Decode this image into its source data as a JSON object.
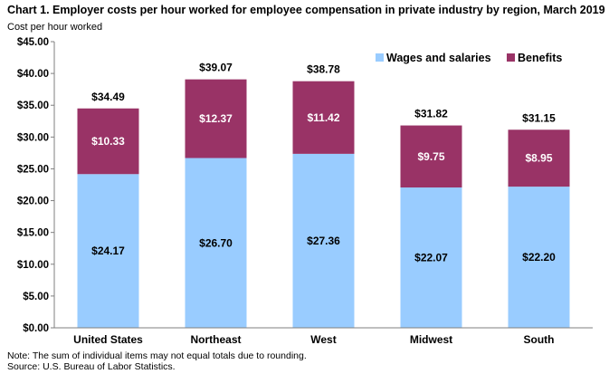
{
  "chart_data": {
    "type": "bar",
    "stacked": true,
    "title": "Chart 1. Employer costs per hour worked for employee compensation in private industry by region, March 2019",
    "ylabel": "Cost per hour worked",
    "xlabel": "",
    "ylim": [
      0,
      45
    ],
    "ytick_step": 5,
    "ytick_labels": [
      "$0.00",
      "$5.00",
      "$10.00",
      "$15.00",
      "$20.00",
      "$25.00",
      "$30.00",
      "$35.00",
      "$40.00",
      "$45.00"
    ],
    "grid": false,
    "legend_position": "top-right",
    "categories": [
      "United States",
      "Northeast",
      "West",
      "Midwest",
      "South"
    ],
    "series": [
      {
        "name": "Wages and salaries",
        "color": "#99ccff",
        "values": [
          24.17,
          26.7,
          27.36,
          22.07,
          22.2
        ],
        "labels": [
          "$24.17",
          "$26.70",
          "$27.36",
          "$22.07",
          "$22.20"
        ]
      },
      {
        "name": "Benefits",
        "color": "#993366",
        "values": [
          10.33,
          12.37,
          11.42,
          9.75,
          8.95
        ],
        "labels": [
          "$10.33",
          "$12.37",
          "$11.42",
          "$9.75",
          "$8.95"
        ]
      }
    ],
    "totals": [
      34.49,
      39.07,
      38.78,
      31.82,
      31.15
    ],
    "total_labels": [
      "$34.49",
      "$39.07",
      "$38.78",
      "$31.82",
      "$31.15"
    ]
  },
  "notes": {
    "line1": "Note: The sum of individual items may not equal totals due to rounding.",
    "line2": "Source: U.S. Bureau of Labor Statistics."
  }
}
